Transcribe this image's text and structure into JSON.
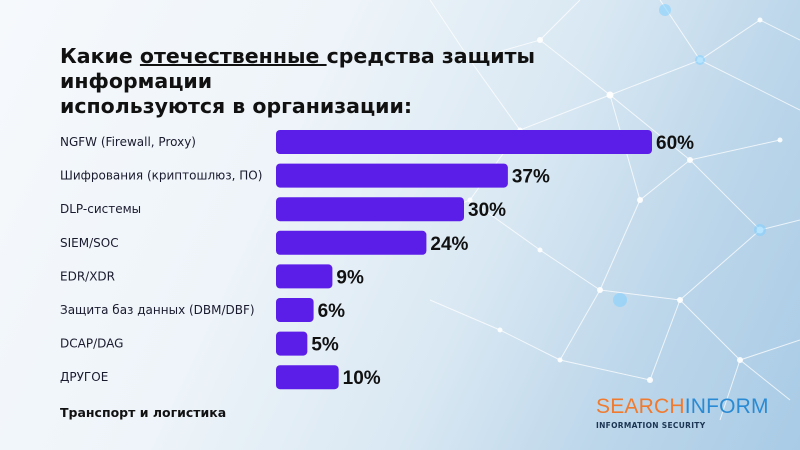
{
  "title": {
    "before": "Какие ",
    "underlined": "отечественные ",
    "after": "средства защиты информации",
    "line2": "используются в организации:"
  },
  "chart_data": {
    "type": "bar",
    "orientation": "horizontal",
    "categories": [
      "NGFW (Firewall, Proxy)",
      "Шифрования (криптошлюз, ПО)",
      "DLP-системы",
      "SIEM/SOC",
      "EDR/XDR",
      "Защита баз данных (DBM/DBF)",
      "DCAP/DAG",
      "ДРУГОЕ"
    ],
    "values": [
      60,
      37,
      30,
      24,
      9,
      6,
      5,
      10
    ],
    "value_labels": [
      "60%",
      "37%",
      "30%",
      "24%",
      "9%",
      "6%",
      "5%",
      "10%"
    ],
    "unit": "%",
    "xlim": [
      0,
      60
    ],
    "bar_color": "#5b1ee8",
    "grid": false,
    "legend": "none"
  },
  "footer": {
    "segment": "Транспорт и логистика"
  },
  "logo": {
    "part1": "SEARCH",
    "part2": "INFORM",
    "tagline": "INFORMATION SECURITY",
    "color1": "#f07a2e",
    "color2": "#2a8bd4"
  }
}
